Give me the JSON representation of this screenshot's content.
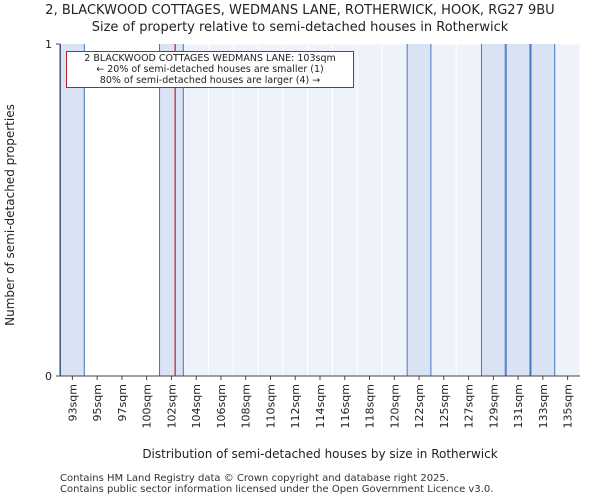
{
  "title_line1": "2, BLACKWOOD COTTAGES, WEDMANS LANE, ROTHERWICK, HOOK, RG27 9BU",
  "title_line2": "Size of property relative to semi-detached houses in Rotherwick",
  "footer_line1": "Contains HM Land Registry data © Crown copyright and database right 2025.",
  "footer_line2": "Contains public sector information licensed under the Open Government Licence v3.0.",
  "annotation": {
    "line1": "2 BLACKWOOD COTTAGES WEDMANS LANE: 103sqm",
    "line2": "← 20% of semi-detached houses are smaller (1)",
    "line3": "80% of semi-detached houses are larger (4) →"
  },
  "colors": {
    "bar_fill": "#dae3f3",
    "bar_edge": "#4472c4",
    "marker": "#b22222",
    "background_shade": "#eef2fa"
  },
  "chart_data": {
    "type": "bar",
    "title": "2, BLACKWOOD COTTAGES, WEDMANS LANE, ROTHERWICK, HOOK, RG27 9BU",
    "subtitle": "Size of property relative to semi-detached houses in Rotherwick",
    "xlabel": "Distribution of semi-detached houses by size in Rotherwick",
    "ylabel": "Number of semi-detached properties",
    "categories": [
      "93sqm",
      "95sqm",
      "97sqm",
      "100sqm",
      "102sqm",
      "104sqm",
      "106sqm",
      "108sqm",
      "110sqm",
      "112sqm",
      "114sqm",
      "116sqm",
      "118sqm",
      "120sqm",
      "122sqm",
      "125sqm",
      "127sqm",
      "129sqm",
      "131sqm",
      "133sqm",
      "135sqm"
    ],
    "values": [
      1,
      0,
      0,
      0,
      1,
      0,
      0,
      0,
      0,
      0,
      0,
      0,
      0,
      0,
      1,
      0,
      0,
      1,
      1,
      1,
      0
    ],
    "ylim": [
      0,
      1
    ],
    "yticks": [
      0,
      1
    ],
    "property_value_sqm": 103,
    "property_bin_position": 4.65,
    "grid": true
  }
}
